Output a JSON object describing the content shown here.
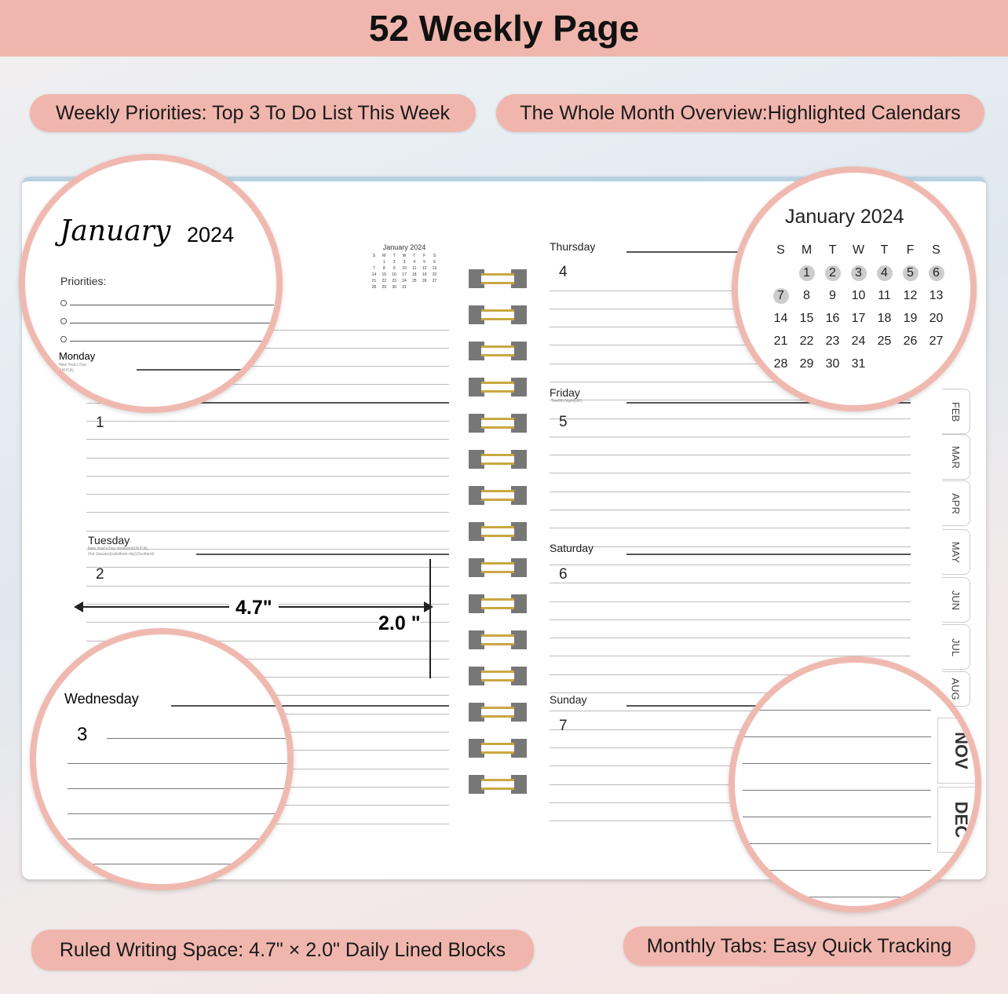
{
  "header": {
    "title": "52 Weekly Page"
  },
  "features": {
    "top_left": "Weekly Priorities: Top 3 To Do List This Week",
    "top_right": "The Whole Month Overview:Highlighted Calendars",
    "bottom_left": "Ruled Writing Space: 4.7\" × 2.0\" Daily Lined Blocks",
    "bottom_right": "Monthly Tabs: Easy Quick Tracking"
  },
  "month": {
    "name": "January",
    "year": "2024",
    "mini_title": "January 2024",
    "title": "January 2024"
  },
  "priorities": {
    "label": "Priorities:"
  },
  "calendar": {
    "weekdays": [
      "S",
      "M",
      "T",
      "W",
      "T",
      "F",
      "S"
    ],
    "weeks": [
      [
        "",
        "1",
        "2",
        "3",
        "4",
        "5",
        "6"
      ],
      [
        "7",
        "8",
        "9",
        "10",
        "11",
        "12",
        "13"
      ],
      [
        "14",
        "15",
        "16",
        "17",
        "18",
        "19",
        "20"
      ],
      [
        "21",
        "22",
        "23",
        "24",
        "25",
        "26",
        "27"
      ],
      [
        "28",
        "29",
        "30",
        "31",
        "",
        "",
        ""
      ]
    ],
    "highlighted": [
      "1",
      "2",
      "3",
      "4",
      "5",
      "6",
      "7"
    ],
    "highlight_color": "#cccccc"
  },
  "days": [
    {
      "name": "Monday",
      "number": "1",
      "notes": [
        "New Year's Day",
        "(UK/CA)"
      ]
    },
    {
      "name": "Tuesday",
      "number": "2",
      "notes": [
        "New Year's Day observed(UK/CA)",
        "2nd January(substitute day)(Scotland)"
      ]
    },
    {
      "name": "Wednesday",
      "number": "3",
      "notes": []
    },
    {
      "name": "Thursday",
      "number": "4",
      "notes": []
    },
    {
      "name": "Friday",
      "number": "5",
      "notes": [
        "Twelfth Night(UK)"
      ]
    },
    {
      "name": "Saturday",
      "number": "6",
      "notes": []
    },
    {
      "name": "Sunday",
      "number": "7",
      "notes": []
    }
  ],
  "dimensions": {
    "width": "4.7\"",
    "height": "2.0 \""
  },
  "tabs": [
    "FEB",
    "MAR",
    "APR",
    "MAY",
    "JUN",
    "JUL",
    "AUG",
    "NOV",
    "DEC"
  ],
  "colors": {
    "accent": "#f0b6ad",
    "spiral": "#c9a842"
  }
}
